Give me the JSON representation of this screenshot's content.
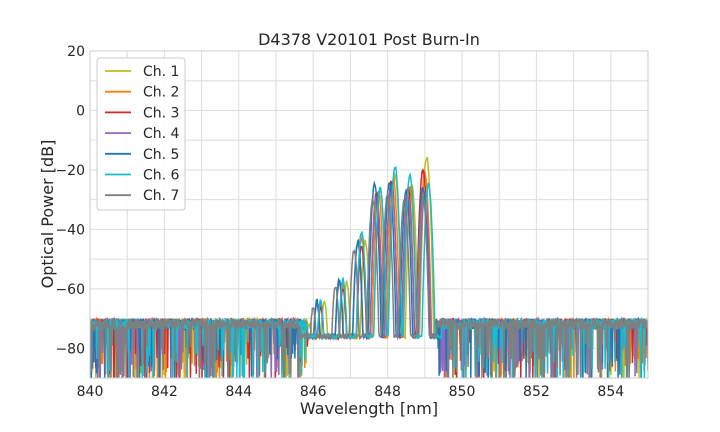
{
  "chart_data": {
    "type": "line",
    "title": "D4378 V20101 Post Burn-In",
    "xlabel": "Wavelength [nm]",
    "ylabel": "Optical Power [dB]",
    "xlim": [
      840,
      855
    ],
    "ylim": [
      -90,
      20
    ],
    "xticks": [
      "840",
      "842",
      "844",
      "846",
      "848",
      "850",
      "852",
      "854"
    ],
    "yticks": [
      "20",
      "0",
      "−20",
      "−40",
      "−60",
      "−80"
    ],
    "grid": true,
    "legend_position": "top-left",
    "noise_floor": -70,
    "series": [
      {
        "name": "Ch. 1",
        "color": "#bcbd22",
        "peaks": [
          [
            846.3,
            -64
          ],
          [
            846.9,
            -58
          ],
          [
            847.4,
            -44
          ],
          [
            847.8,
            -27
          ],
          [
            848.2,
            -22
          ],
          [
            848.65,
            -25
          ],
          [
            849.05,
            -16
          ]
        ]
      },
      {
        "name": "Ch. 2",
        "color": "#ff7f0e",
        "peaks": [
          [
            846.2,
            -65
          ],
          [
            846.8,
            -59
          ],
          [
            847.3,
            -43
          ],
          [
            847.75,
            -27
          ],
          [
            848.15,
            -23
          ],
          [
            848.6,
            -26
          ],
          [
            849.0,
            -21
          ]
        ]
      },
      {
        "name": "Ch. 3",
        "color": "#d62728",
        "peaks": [
          [
            846.2,
            -66
          ],
          [
            846.8,
            -60
          ],
          [
            847.3,
            -46
          ],
          [
            847.7,
            -28
          ],
          [
            848.1,
            -24
          ],
          [
            848.55,
            -26
          ],
          [
            848.95,
            -20
          ]
        ]
      },
      {
        "name": "Ch. 4",
        "color": "#9467bd",
        "peaks": [
          [
            846.1,
            -65
          ],
          [
            846.7,
            -58
          ],
          [
            847.2,
            -45
          ],
          [
            847.7,
            -29
          ],
          [
            848.1,
            -25
          ],
          [
            848.55,
            -29
          ],
          [
            849.0,
            -28
          ]
        ]
      },
      {
        "name": "Ch. 5",
        "color": "#1f77b4",
        "peaks": [
          [
            846.1,
            -64
          ],
          [
            846.7,
            -57
          ],
          [
            847.2,
            -44
          ],
          [
            847.65,
            -25
          ],
          [
            848.05,
            -24
          ],
          [
            848.5,
            -27
          ],
          [
            848.95,
            -26
          ]
        ]
      },
      {
        "name": "Ch. 6",
        "color": "#17becf",
        "peaks": [
          [
            846.2,
            -64
          ],
          [
            846.8,
            -57
          ],
          [
            847.3,
            -41
          ],
          [
            847.8,
            -26
          ],
          [
            848.2,
            -19
          ],
          [
            848.6,
            -22
          ],
          [
            849.1,
            -25
          ]
        ]
      },
      {
        "name": "Ch. 7",
        "color": "#7f7f7f",
        "peaks": [
          [
            846.0,
            -66
          ],
          [
            846.6,
            -59
          ],
          [
            847.1,
            -47
          ],
          [
            847.6,
            -30
          ],
          [
            848.0,
            -28
          ],
          [
            848.45,
            -30
          ],
          [
            848.95,
            -29
          ]
        ]
      }
    ]
  }
}
